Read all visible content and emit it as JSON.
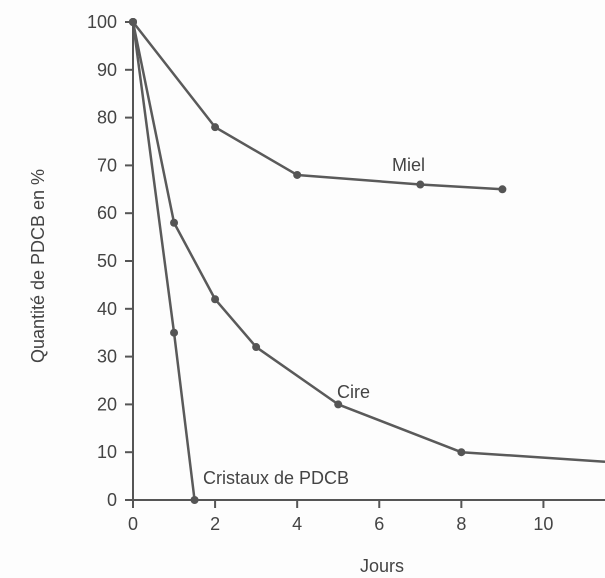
{
  "chart_data": {
    "type": "line",
    "title": "",
    "xlabel": "Jours",
    "ylabel": "Quantité de PDCB en %",
    "xlim": [
      0,
      11.5
    ],
    "ylim": [
      0,
      100
    ],
    "xticks": [
      0,
      2,
      4,
      6,
      8,
      10
    ],
    "yticks": [
      0,
      10,
      20,
      30,
      40,
      50,
      60,
      70,
      80,
      90,
      100
    ],
    "grid": false,
    "legend": "none",
    "series": [
      {
        "name": "Miel",
        "points": [
          [
            0,
            100
          ],
          [
            2,
            78
          ],
          [
            4,
            68
          ],
          [
            7,
            66
          ],
          [
            9,
            65
          ]
        ]
      },
      {
        "name": "Cire",
        "points": [
          [
            0,
            100
          ],
          [
            1,
            58
          ],
          [
            2,
            42
          ],
          [
            3,
            32
          ],
          [
            5,
            20
          ],
          [
            8,
            10
          ]
        ],
        "extends_to": [
          11.5,
          8
        ]
      },
      {
        "name": "Cristaux de PDCB",
        "points": [
          [
            0,
            100
          ],
          [
            1,
            35
          ],
          [
            1.5,
            0
          ]
        ]
      }
    ],
    "colors": {
      "line": "#5a5a5a",
      "text": "#444444"
    }
  }
}
